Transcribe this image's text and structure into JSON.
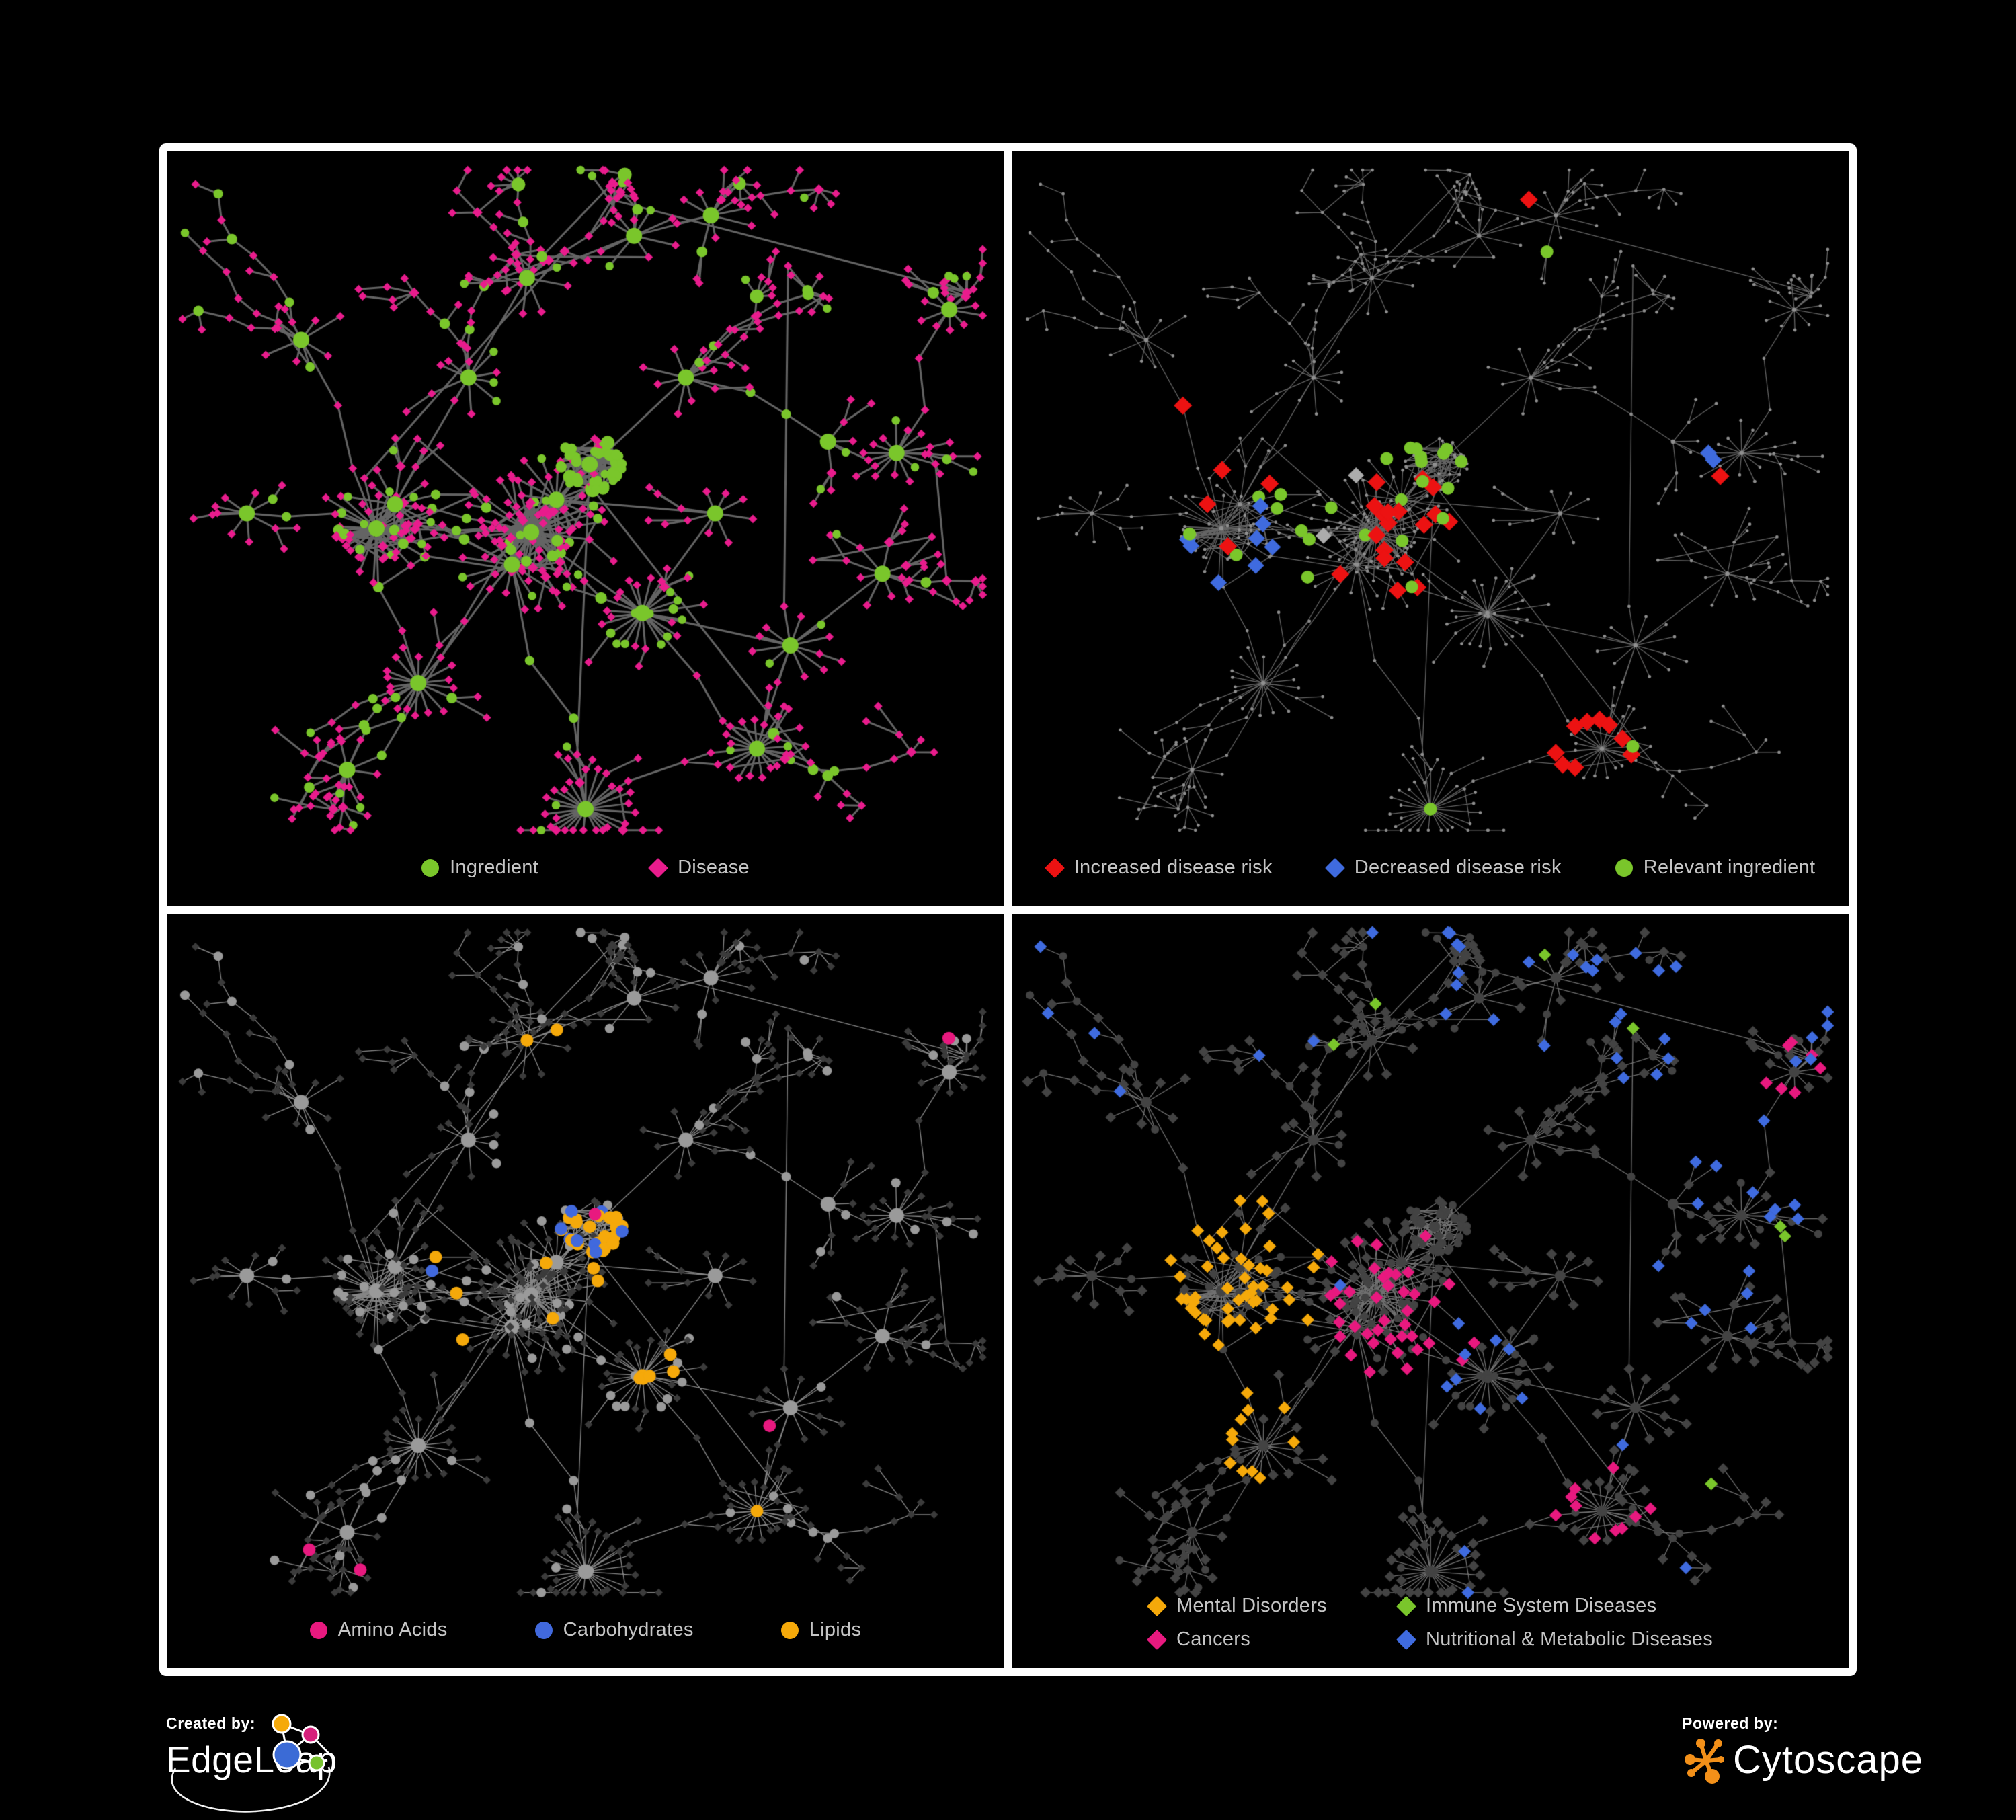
{
  "branding": {
    "created_by": "Created by:",
    "brand": "EdgeLeap",
    "powered_by": "Powered by:",
    "engine": "Cytoscape"
  },
  "palette": {
    "background": "#000000",
    "panel_border": "#FFFFFF",
    "legend_text": "#C5C5C5",
    "ingredient_green": "#7AC62B",
    "disease_pink": "#E91C8D",
    "risk_red": "#EC1212",
    "risk_blue": "#3F6BDF",
    "risk_gray": "#ACACAC",
    "amino_pink": "#E8197F",
    "carb_blue": "#4169DD",
    "lipid_orange": "#F5A90A",
    "mental_orange": "#F5A90A",
    "immune_green": "#7AC62B",
    "cancer_pink": "#E8197F",
    "nutri_blue": "#3F6BDF",
    "dot_gray": "#8F8F8F",
    "node_gray_light": "#9A9A9A",
    "node_gray_dark": "#3B3B3B",
    "node_gray_mid": "#434343",
    "edge_p1": "#696969",
    "edge_p2": "#6F6F6F",
    "edge_p3": "#9C9C9C",
    "edge_p4": "#7C7C7C",
    "edgeleap_orange": "#F5A90A",
    "edgeleap_pink": "#D6207B",
    "edgeleap_blue": "#3B6BD6",
    "edgeleap_green": "#77C22E",
    "cytoscape_orange": "#F39019"
  },
  "network_key": {
    "circle": "ingredient node",
    "diamond": "disease node"
  },
  "panels": [
    {
      "id": "ingredients-and-diseases",
      "legend": [
        {
          "shape": "circle",
          "color": "#7AC62B",
          "label": "Ingredient"
        },
        {
          "shape": "diamond",
          "color": "#E91C8D",
          "label": "Disease"
        }
      ]
    },
    {
      "id": "disease-risk",
      "legend": [
        {
          "shape": "diamond",
          "color": "#EC1212",
          "label": "Increased disease risk"
        },
        {
          "shape": "diamond",
          "color": "#3F6BDF",
          "label": "Decreased disease risk"
        },
        {
          "shape": "circle",
          "color": "#7AC62B",
          "label": "Relevant ingredient"
        }
      ]
    },
    {
      "id": "ingredient-classes",
      "legend": [
        {
          "shape": "circle",
          "color": "#E8197F",
          "label": "Amino Acids"
        },
        {
          "shape": "circle",
          "color": "#4169DD",
          "label": "Carbohydrates"
        },
        {
          "shape": "circle",
          "color": "#F5A90A",
          "label": "Lipids"
        }
      ]
    },
    {
      "id": "disease-categories",
      "legend": [
        {
          "shape": "diamond",
          "color": "#F5A90A",
          "label": "Mental Disorders"
        },
        {
          "shape": "diamond",
          "color": "#7AC62B",
          "label": "Immune System Diseases"
        },
        {
          "shape": "diamond",
          "color": "#E8197F",
          "label": "Cancers"
        },
        {
          "shape": "diamond",
          "color": "#3F6BDF",
          "label": "Nutritional & Metabolic Diseases"
        }
      ]
    }
  ]
}
